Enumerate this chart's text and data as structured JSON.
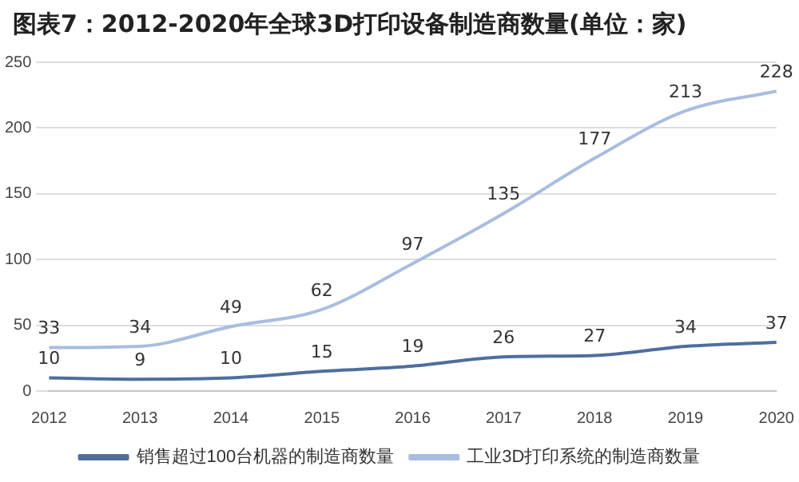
{
  "chart_data": {
    "type": "line",
    "title": "图表7：2012-2020年全球3D打印设备制造商数量(单位：家)",
    "categories": [
      "2012",
      "2013",
      "2014",
      "2015",
      "2016",
      "2017",
      "2018",
      "2019",
      "2020"
    ],
    "series": [
      {
        "name": "销售超过100台机器的制造商数量",
        "color": "#4e6e9e",
        "values": [
          10,
          9,
          10,
          15,
          19,
          26,
          27,
          34,
          37
        ]
      },
      {
        "name": "工业3D打印系统的制造商数量",
        "color": "#a8bde0",
        "values": [
          33,
          34,
          49,
          62,
          97,
          135,
          177,
          213,
          228
        ]
      }
    ],
    "ylim": [
      0,
      250
    ],
    "yticks": [
      0,
      50,
      100,
      150,
      200,
      250
    ],
    "grid": "y",
    "legend": "bottom",
    "data_labels": true,
    "marker": "none"
  }
}
